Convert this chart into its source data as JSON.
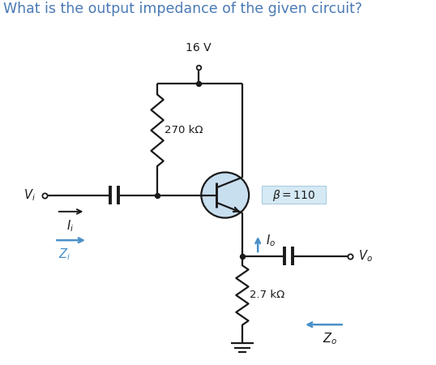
{
  "title": "What is the output impedance of the given circuit?",
  "title_color": "#4a7ab5",
  "title_fontsize": 12.5,
  "bg_color": "#ffffff",
  "supply_label": "16 V",
  "r1_label": "270 kΩ",
  "r2_label": "2.7 kΩ",
  "beta_label": "β = 110",
  "vi_label": "V_i",
  "vo_label": "V_o",
  "zi_label": "Z_i",
  "zo_label": "Z_o",
  "ii_label": "I_i",
  "io_label": "I_o",
  "transistor_circle_color": "#c8dff0",
  "beta_box_color": "#d5eaf5",
  "line_color": "#1a1a1a",
  "blue_color": "#4a90c8",
  "lw": 1.6
}
